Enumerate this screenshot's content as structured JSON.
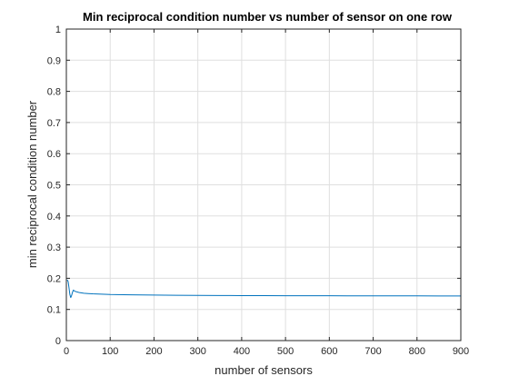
{
  "chart_data": {
    "type": "line",
    "title": "Min reciprocal condition number vs number of sensor on one row",
    "xlabel": "number of sensors",
    "ylabel": "min reciprocal condition number",
    "xlim": [
      0,
      900
    ],
    "ylim": [
      0,
      1
    ],
    "xticks": [
      0,
      100,
      200,
      300,
      400,
      500,
      600,
      700,
      800,
      900
    ],
    "yticks": [
      0,
      0.1,
      0.2,
      0.3,
      0.4,
      0.5,
      0.6,
      0.7,
      0.8,
      0.9,
      1
    ],
    "xtick_labels": [
      "0",
      "100",
      "200",
      "300",
      "400",
      "500",
      "600",
      "700",
      "800",
      "900"
    ],
    "ytick_labels": [
      "0",
      "0.1",
      "0.2",
      "0.3",
      "0.4",
      "0.5",
      "0.6",
      "0.7",
      "0.8",
      "0.9",
      "1"
    ],
    "grid": true,
    "series": [
      {
        "color": "#0072BD",
        "x": [
          2,
          4,
          6,
          8,
          10,
          12,
          14,
          16,
          18,
          20,
          25,
          30,
          40,
          50,
          60,
          80,
          100,
          150,
          200,
          250,
          300,
          350,
          400,
          450,
          500,
          550,
          600,
          650,
          700,
          750,
          800,
          850,
          900
        ],
        "y": [
          0.195,
          0.19,
          0.17,
          0.148,
          0.138,
          0.145,
          0.155,
          0.162,
          0.16,
          0.158,
          0.156,
          0.154,
          0.152,
          0.151,
          0.15,
          0.149,
          0.148,
          0.147,
          0.146,
          0.1455,
          0.145,
          0.1447,
          0.1445,
          0.1443,
          0.1441,
          0.144,
          0.1438,
          0.1437,
          0.1436,
          0.1435,
          0.1434,
          0.1433,
          0.1432
        ]
      }
    ]
  },
  "colors": {
    "axis": "#262626",
    "grid": "#dfdfdf",
    "line": "#0072BD"
  }
}
